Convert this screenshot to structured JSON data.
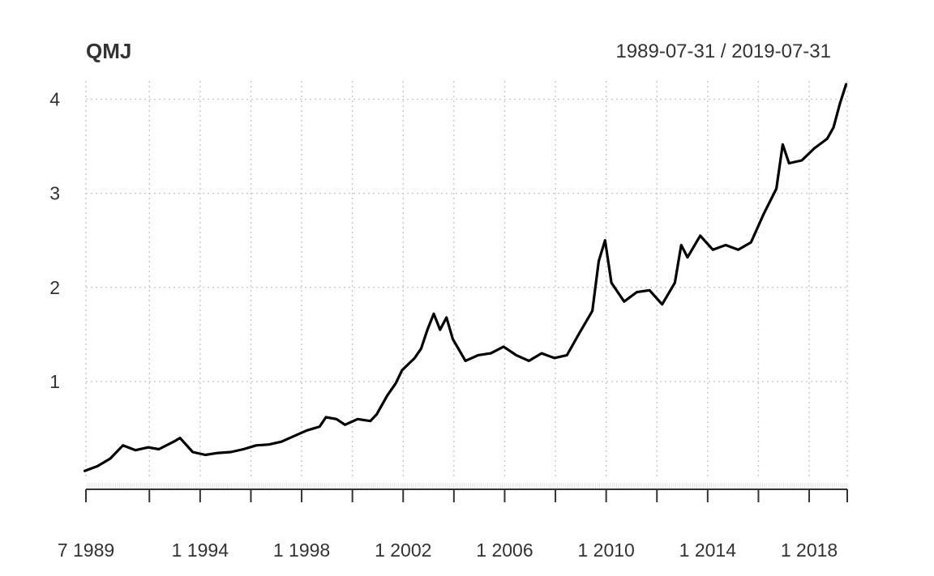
{
  "chart_data": {
    "type": "line",
    "title": "QMJ",
    "date_range": "1989-07-31 / 2019-07-31",
    "xlabel": "",
    "ylabel": "",
    "xlim": [
      "1989-07-31",
      "2019-07-31"
    ],
    "ylim": [
      0,
      4.2
    ],
    "grid": true,
    "y_ticks": [
      1,
      2,
      3,
      4
    ],
    "x_ticks": [
      {
        "date": "1989-07-31",
        "label": "7 1989"
      },
      {
        "date": "1992-01-31",
        "label": ""
      },
      {
        "date": "1994-01-31",
        "label": "1 1994"
      },
      {
        "date": "1996-01-31",
        "label": ""
      },
      {
        "date": "1998-01-31",
        "label": "1 1998"
      },
      {
        "date": "2000-01-31",
        "label": ""
      },
      {
        "date": "2002-01-31",
        "label": "1 2002"
      },
      {
        "date": "2004-01-31",
        "label": ""
      },
      {
        "date": "2006-01-31",
        "label": "1 2006"
      },
      {
        "date": "2008-01-31",
        "label": ""
      },
      {
        "date": "2010-01-31",
        "label": "1 2010"
      },
      {
        "date": "2012-01-31",
        "label": ""
      },
      {
        "date": "2014-01-31",
        "label": "1 2014"
      },
      {
        "date": "2016-01-31",
        "label": ""
      },
      {
        "date": "2018-01-31",
        "label": "1 2018"
      },
      {
        "date": "2019-07-31",
        "label": ""
      }
    ],
    "series": [
      {
        "name": "",
        "color": "#000000",
        "points": [
          [
            "1989-07",
            0.05
          ],
          [
            "1990-01",
            0.1
          ],
          [
            "1990-07",
            0.18
          ],
          [
            "1991-01",
            0.32
          ],
          [
            "1991-07",
            0.27
          ],
          [
            "1992-01",
            0.3
          ],
          [
            "1992-06",
            0.28
          ],
          [
            "1993-01",
            0.36
          ],
          [
            "1993-04",
            0.4
          ],
          [
            "1993-10",
            0.25
          ],
          [
            "1994-04",
            0.22
          ],
          [
            "1994-10",
            0.24
          ],
          [
            "1995-04",
            0.25
          ],
          [
            "1995-10",
            0.28
          ],
          [
            "1996-04",
            0.32
          ],
          [
            "1996-10",
            0.33
          ],
          [
            "1997-04",
            0.36
          ],
          [
            "1997-10",
            0.42
          ],
          [
            "1998-04",
            0.48
          ],
          [
            "1998-10",
            0.52
          ],
          [
            "1999-01",
            0.62
          ],
          [
            "1999-06",
            0.6
          ],
          [
            "1999-10",
            0.54
          ],
          [
            "2000-04",
            0.6
          ],
          [
            "2000-10",
            0.58
          ],
          [
            "2001-01",
            0.65
          ],
          [
            "2001-06",
            0.85
          ],
          [
            "2001-10",
            0.98
          ],
          [
            "2002-01",
            1.12
          ],
          [
            "2002-07",
            1.25
          ],
          [
            "2002-10",
            1.35
          ],
          [
            "2003-01",
            1.55
          ],
          [
            "2003-04",
            1.72
          ],
          [
            "2003-07",
            1.55
          ],
          [
            "2003-10",
            1.68
          ],
          [
            "2004-01",
            1.45
          ],
          [
            "2004-07",
            1.22
          ],
          [
            "2005-01",
            1.28
          ],
          [
            "2005-07",
            1.3
          ],
          [
            "2006-01",
            1.37
          ],
          [
            "2006-07",
            1.28
          ],
          [
            "2007-01",
            1.22
          ],
          [
            "2007-07",
            1.3
          ],
          [
            "2008-01",
            1.25
          ],
          [
            "2008-07",
            1.28
          ],
          [
            "2009-01",
            1.52
          ],
          [
            "2009-07",
            1.75
          ],
          [
            "2009-10",
            2.28
          ],
          [
            "2010-01",
            2.5
          ],
          [
            "2010-04",
            2.05
          ],
          [
            "2010-10",
            1.85
          ],
          [
            "2011-04",
            1.95
          ],
          [
            "2011-10",
            1.97
          ],
          [
            "2012-04",
            1.82
          ],
          [
            "2012-10",
            2.05
          ],
          [
            "2013-01",
            2.45
          ],
          [
            "2013-04",
            2.32
          ],
          [
            "2013-10",
            2.55
          ],
          [
            "2014-04",
            2.4
          ],
          [
            "2014-10",
            2.45
          ],
          [
            "2015-04",
            2.4
          ],
          [
            "2015-10",
            2.48
          ],
          [
            "2016-04",
            2.78
          ],
          [
            "2016-10",
            3.05
          ],
          [
            "2017-01",
            3.52
          ],
          [
            "2017-04",
            3.32
          ],
          [
            "2017-10",
            3.35
          ],
          [
            "2018-04",
            3.48
          ],
          [
            "2018-10",
            3.58
          ],
          [
            "2019-01",
            3.7
          ],
          [
            "2019-04",
            3.95
          ],
          [
            "2019-07",
            4.16
          ]
        ]
      }
    ]
  }
}
